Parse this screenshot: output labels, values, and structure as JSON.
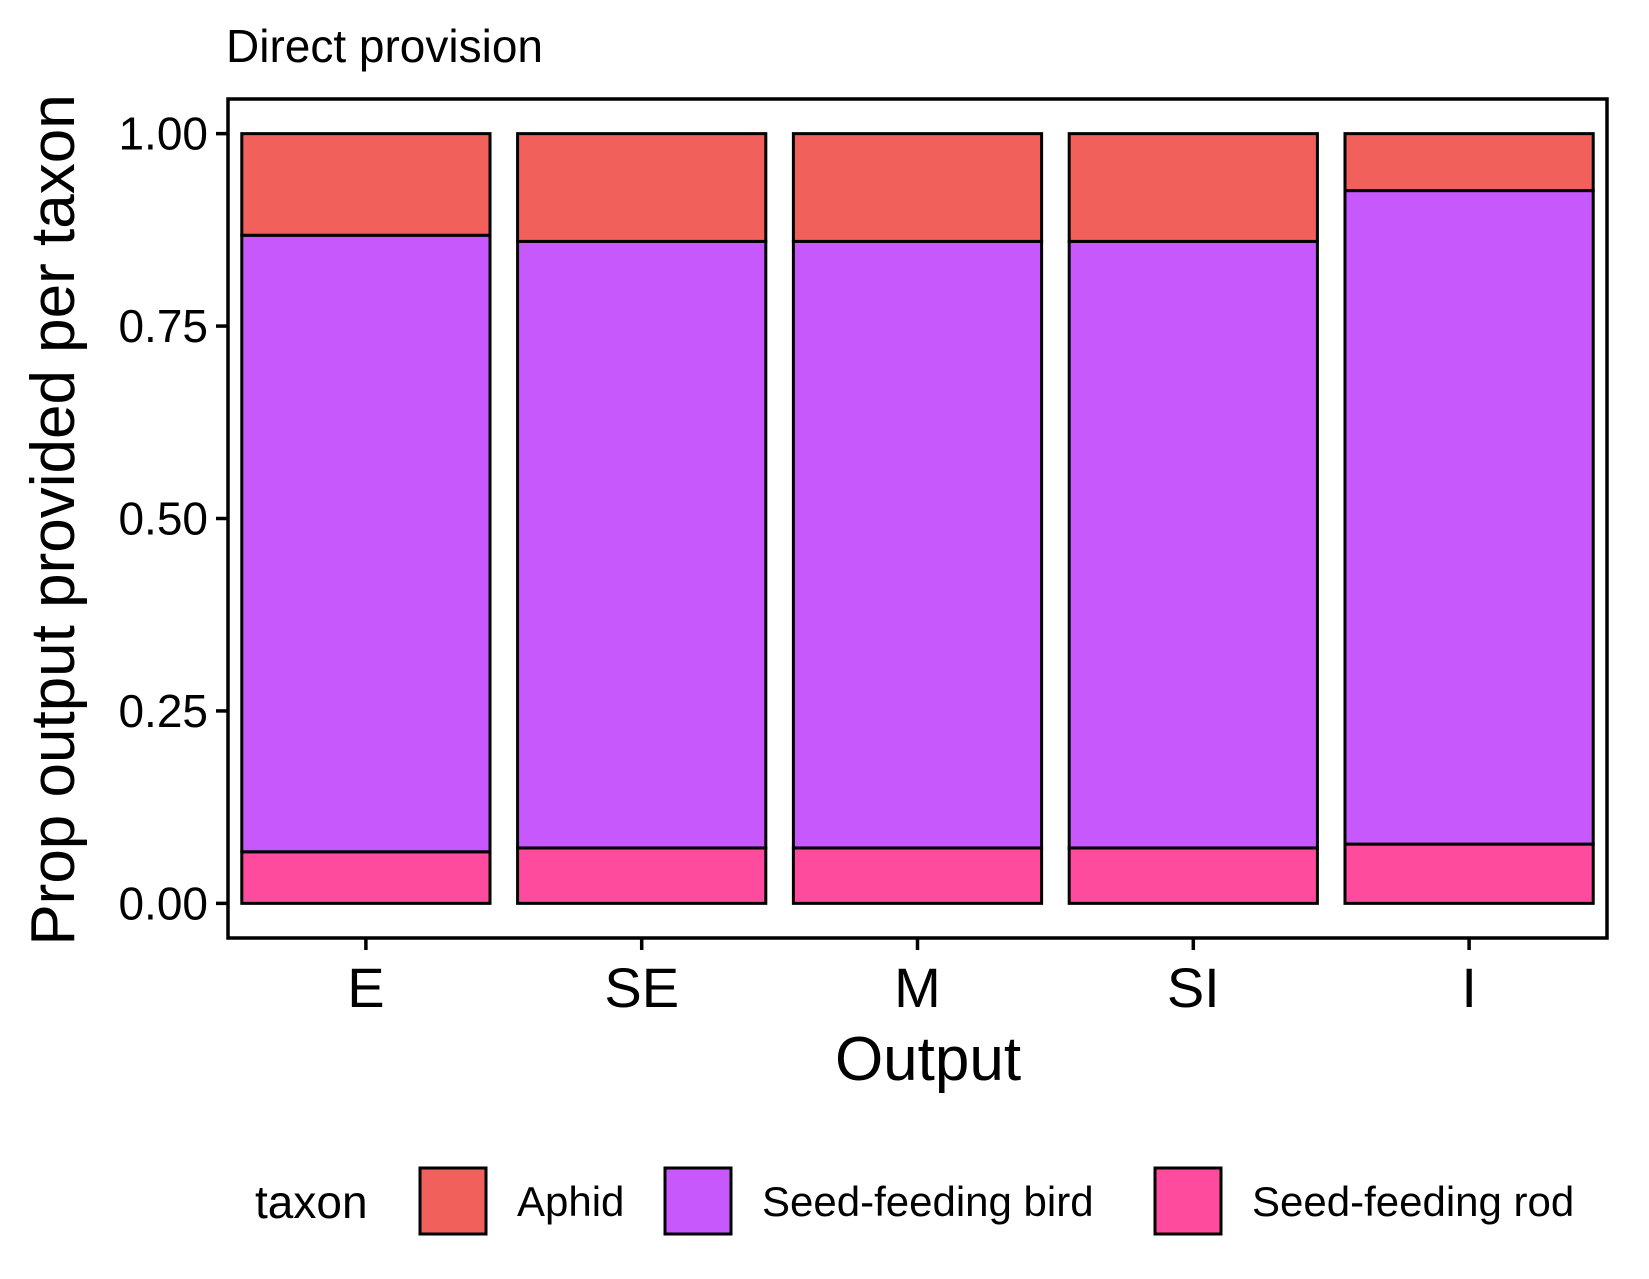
{
  "chart_data": {
    "type": "bar",
    "stacked": true,
    "title": "Direct provision",
    "xlabel": "Output",
    "ylabel": "Prop output provided per taxon",
    "categories": [
      "E",
      "SE",
      "M",
      "SI",
      "I"
    ],
    "ylim": [
      -0.045,
      1.045
    ],
    "yticks": [
      0,
      0.25,
      0.5,
      0.75,
      1
    ],
    "ytick_labels": [
      "0.00",
      "0.25",
      "0.50",
      "0.75",
      "1.00"
    ],
    "grid": false,
    "legend": {
      "title": "taxon",
      "position": "bottom"
    },
    "series": [
      {
        "name": "Seed-feeding rod",
        "color": "#FF4B9E",
        "values": [
          0.067,
          0.072,
          0.072,
          0.072,
          0.077
        ]
      },
      {
        "name": "Seed-feeding bird",
        "color": "#C758FC",
        "values": [
          0.801,
          0.788,
          0.788,
          0.788,
          0.849
        ]
      },
      {
        "name": "Aphid",
        "color": "#F2605C",
        "values": [
          0.132,
          0.14,
          0.14,
          0.14,
          0.074
        ]
      }
    ],
    "legend_order": [
      "Aphid",
      "Seed-feeding bird",
      "Seed-feeding rod"
    ]
  }
}
